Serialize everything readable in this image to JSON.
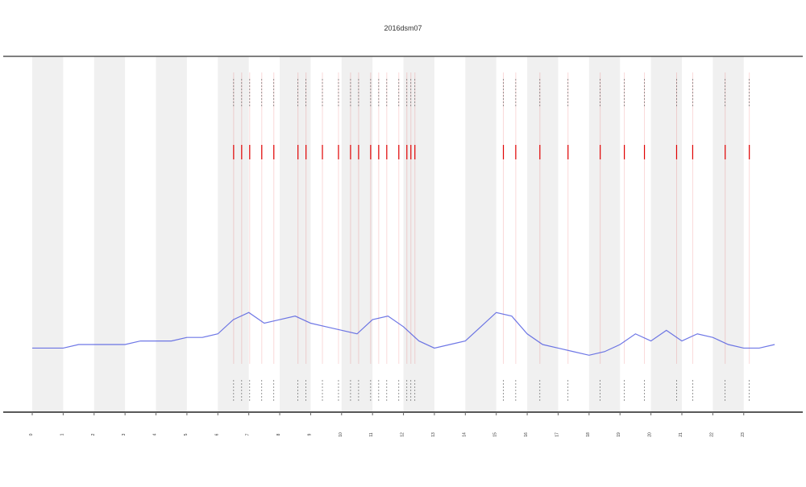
{
  "chart_data": {
    "type": "line",
    "title": "2016dsm07",
    "xlim": [
      0,
      24.7
    ],
    "ylim": [
      0,
      100
    ],
    "xticks": [
      0,
      1,
      2,
      3,
      4,
      5,
      6,
      7,
      8,
      9,
      10,
      11,
      12,
      13,
      14,
      15,
      16,
      17,
      18,
      19,
      20,
      21,
      22,
      23
    ],
    "shaded_bands": [
      [
        0,
        1
      ],
      [
        2,
        3
      ],
      [
        4,
        5
      ],
      [
        6,
        7
      ],
      [
        8,
        9
      ],
      [
        10,
        11
      ],
      [
        12,
        13
      ],
      [
        14,
        15
      ],
      [
        16,
        17
      ],
      [
        18,
        19
      ],
      [
        20,
        21
      ],
      [
        22,
        23
      ]
    ],
    "band_color": "#f0f0f0",
    "x": [
      0,
      0.5,
      1,
      1.5,
      2,
      2.5,
      3,
      3.5,
      4,
      4.5,
      5,
      5.5,
      6,
      6.5,
      7,
      7.5,
      8,
      8.5,
      9,
      9.5,
      10,
      10.5,
      11,
      11.5,
      12,
      12.5,
      13,
      13.5,
      14,
      14.5,
      15,
      15.5,
      16,
      16.5,
      17,
      17.5,
      18,
      18.5,
      19,
      19.5,
      20,
      20.5,
      21,
      21.5,
      22,
      22.5,
      23,
      23.5,
      24
    ],
    "series": [
      {
        "color": "#4a55e0",
        "values": [
          18,
          18,
          18,
          19,
          19,
          19,
          19,
          20,
          20,
          20,
          21,
          21,
          22,
          26,
          28,
          25,
          26,
          27,
          25,
          24,
          23,
          22,
          26,
          27,
          24,
          20,
          18,
          19,
          20,
          24,
          28,
          27,
          22,
          19,
          18,
          17,
          16,
          17,
          19,
          22,
          20,
          23,
          20,
          22,
          21,
          19,
          18,
          18,
          19
        ]
      }
    ],
    "events": {
      "color": "#e00000",
      "x": [
        6.51,
        6.77,
        7.03,
        7.42,
        7.81,
        8.59,
        8.85,
        9.38,
        9.9,
        10.29,
        10.55,
        10.94,
        11.2,
        11.46,
        11.85,
        12.11,
        12.24,
        12.37,
        15.23,
        15.63,
        16.41,
        17.32,
        18.36,
        19.14,
        19.79,
        20.83,
        21.35,
        22.4,
        23.18
      ]
    }
  }
}
